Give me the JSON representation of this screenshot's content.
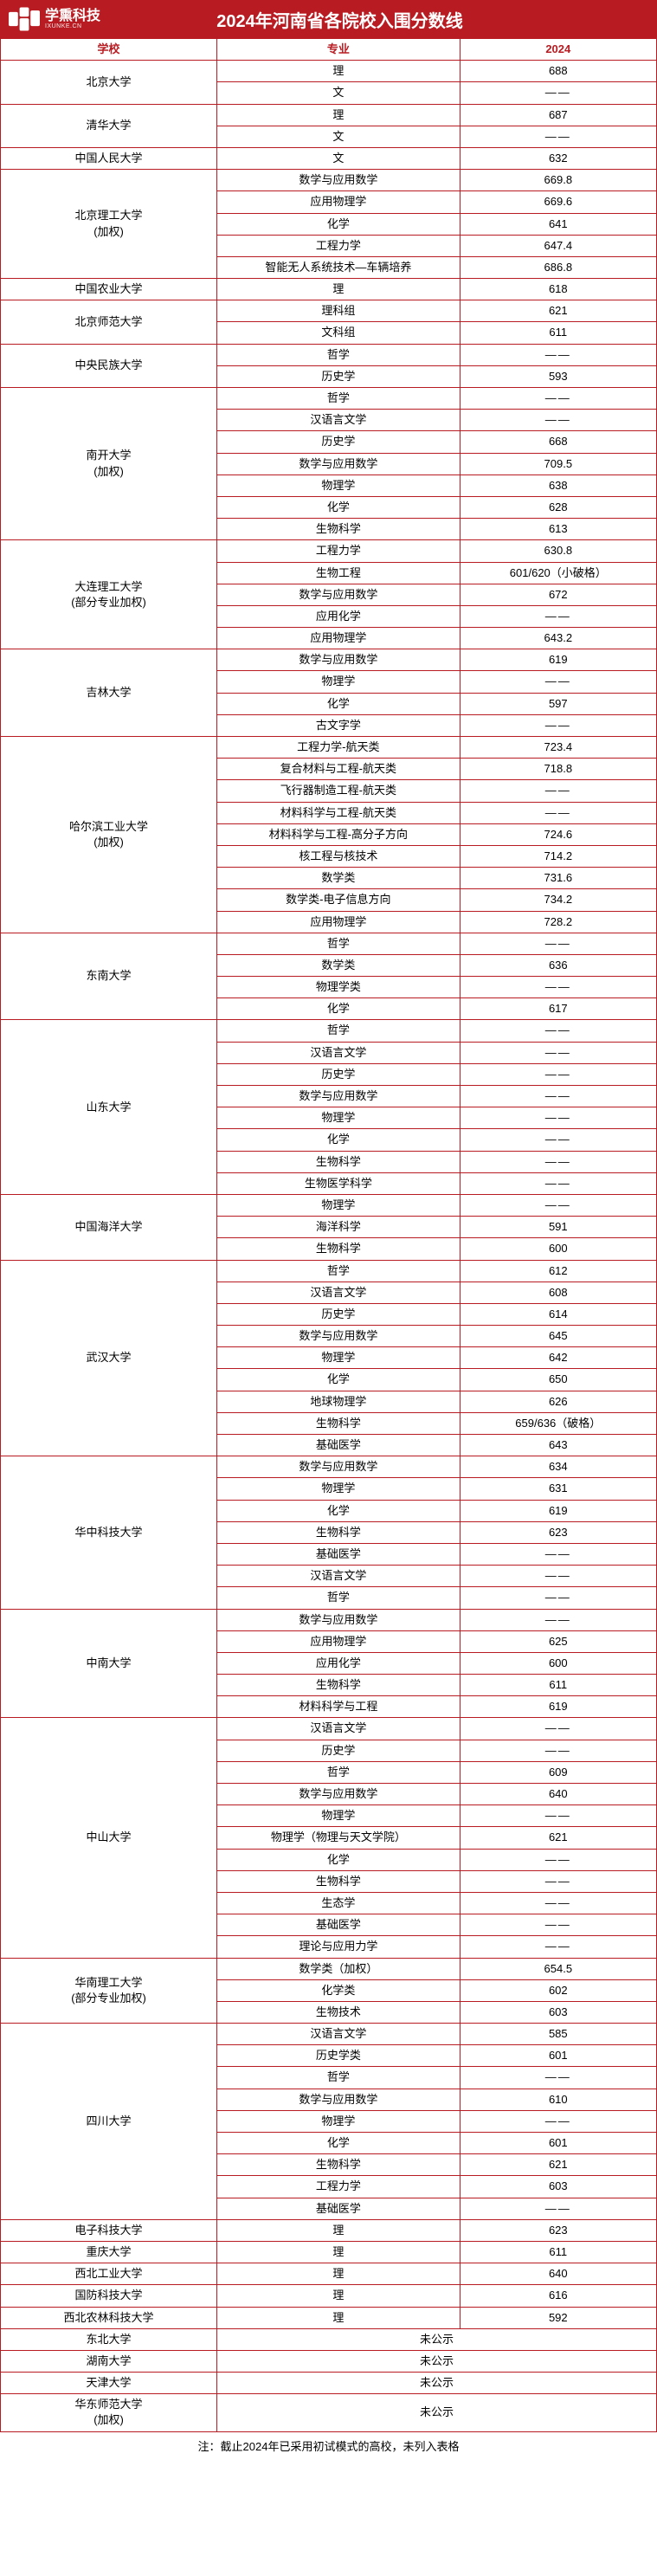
{
  "header": {
    "brand": "学熏科技",
    "brand_sub": "IXUNKE.CN",
    "title": "2024年河南省各院校入围分数线"
  },
  "columns": {
    "school": "学校",
    "major": "专业",
    "score": "2024"
  },
  "dash": "——",
  "footnote": "注：截止2024年已采用初试模式的高校，未列入表格",
  "rows": [
    {
      "s": "北京大学",
      "m": "理",
      "v": "688"
    },
    {
      "s": "",
      "m": "文",
      "v": "——"
    },
    {
      "s": "清华大学",
      "m": "理",
      "v": "687"
    },
    {
      "s": "",
      "m": "文",
      "v": "——"
    },
    {
      "s": "中国人民大学",
      "m": "文",
      "v": "632"
    },
    {
      "s": "北京理工大学\n(加权)",
      "m": "数学与应用数学",
      "v": "669.8"
    },
    {
      "s": "",
      "m": "应用物理学",
      "v": "669.6"
    },
    {
      "s": "",
      "m": "化学",
      "v": "641"
    },
    {
      "s": "",
      "m": "工程力学",
      "v": "647.4"
    },
    {
      "s": "",
      "m": "智能无人系统技术—车辆培养",
      "v": "686.8"
    },
    {
      "s": "中国农业大学",
      "m": "理",
      "v": "618"
    },
    {
      "s": "北京师范大学",
      "m": "理科组",
      "v": "621"
    },
    {
      "s": "",
      "m": "文科组",
      "v": "611"
    },
    {
      "s": "中央民族大学",
      "m": "哲学",
      "v": "——"
    },
    {
      "s": "",
      "m": "历史学",
      "v": "593"
    },
    {
      "s": "南开大学\n(加权)",
      "m": "哲学",
      "v": "——"
    },
    {
      "s": "",
      "m": "汉语言文学",
      "v": "——"
    },
    {
      "s": "",
      "m": "历史学",
      "v": "668"
    },
    {
      "s": "",
      "m": "数学与应用数学",
      "v": "709.5"
    },
    {
      "s": "",
      "m": "物理学",
      "v": "638"
    },
    {
      "s": "",
      "m": "化学",
      "v": "628"
    },
    {
      "s": "",
      "m": "生物科学",
      "v": "613"
    },
    {
      "s": "大连理工大学\n(部分专业加权)",
      "m": "工程力学",
      "v": "630.8"
    },
    {
      "s": "",
      "m": "生物工程",
      "v": "601/620（小破格）"
    },
    {
      "s": "",
      "m": "数学与应用数学",
      "v": "672"
    },
    {
      "s": "",
      "m": "应用化学",
      "v": "——"
    },
    {
      "s": "",
      "m": "应用物理学",
      "v": "643.2"
    },
    {
      "s": "吉林大学",
      "m": "数学与应用数学",
      "v": "619"
    },
    {
      "s": "",
      "m": "物理学",
      "v": "——"
    },
    {
      "s": "",
      "m": "化学",
      "v": "597"
    },
    {
      "s": "",
      "m": "古文字学",
      "v": "——"
    },
    {
      "s": "哈尔滨工业大学\n(加权)",
      "m": "工程力学-航天类",
      "v": "723.4"
    },
    {
      "s": "",
      "m": "复合材料与工程-航天类",
      "v": "718.8"
    },
    {
      "s": "",
      "m": "飞行器制造工程-航天类",
      "v": "——"
    },
    {
      "s": "",
      "m": "材料科学与工程-航天类",
      "v": "——"
    },
    {
      "s": "",
      "m": "材料科学与工程-高分子方向",
      "v": "724.6"
    },
    {
      "s": "",
      "m": "核工程与核技术",
      "v": "714.2"
    },
    {
      "s": "",
      "m": "数学类",
      "v": "731.6"
    },
    {
      "s": "",
      "m": "数学类-电子信息方向",
      "v": "734.2"
    },
    {
      "s": "",
      "m": "应用物理学",
      "v": "728.2"
    },
    {
      "s": "东南大学",
      "m": "哲学",
      "v": "——"
    },
    {
      "s": "",
      "m": "数学类",
      "v": "636"
    },
    {
      "s": "",
      "m": "物理学类",
      "v": "——"
    },
    {
      "s": "",
      "m": "化学",
      "v": "617"
    },
    {
      "s": "山东大学",
      "m": "哲学",
      "v": "——"
    },
    {
      "s": "",
      "m": "汉语言文学",
      "v": "——"
    },
    {
      "s": "",
      "m": "历史学",
      "v": "——"
    },
    {
      "s": "",
      "m": "数学与应用数学",
      "v": "——"
    },
    {
      "s": "",
      "m": "物理学",
      "v": "——"
    },
    {
      "s": "",
      "m": "化学",
      "v": "——"
    },
    {
      "s": "",
      "m": "生物科学",
      "v": "——"
    },
    {
      "s": "",
      "m": "生物医学科学",
      "v": "——"
    },
    {
      "s": "中国海洋大学",
      "m": "物理学",
      "v": "——"
    },
    {
      "s": "",
      "m": "海洋科学",
      "v": "591"
    },
    {
      "s": "",
      "m": "生物科学",
      "v": "600"
    },
    {
      "s": "武汉大学",
      "m": "哲学",
      "v": "612"
    },
    {
      "s": "",
      "m": "汉语言文学",
      "v": "608"
    },
    {
      "s": "",
      "m": "历史学",
      "v": "614"
    },
    {
      "s": "",
      "m": "数学与应用数学",
      "v": "645"
    },
    {
      "s": "",
      "m": "物理学",
      "v": "642"
    },
    {
      "s": "",
      "m": "化学",
      "v": "650"
    },
    {
      "s": "",
      "m": "地球物理学",
      "v": "626"
    },
    {
      "s": "",
      "m": "生物科学",
      "v": "659/636（破格）"
    },
    {
      "s": "",
      "m": "基础医学",
      "v": "643"
    },
    {
      "s": "华中科技大学",
      "m": "数学与应用数学",
      "v": "634"
    },
    {
      "s": "",
      "m": "物理学",
      "v": "631"
    },
    {
      "s": "",
      "m": "化学",
      "v": "619"
    },
    {
      "s": "",
      "m": "生物科学",
      "v": "623"
    },
    {
      "s": "",
      "m": "基础医学",
      "v": "——"
    },
    {
      "s": "",
      "m": "汉语言文学",
      "v": "——"
    },
    {
      "s": "",
      "m": "哲学",
      "v": "——"
    },
    {
      "s": "中南大学",
      "m": "数学与应用数学",
      "v": "——"
    },
    {
      "s": "",
      "m": "应用物理学",
      "v": "625"
    },
    {
      "s": "",
      "m": "应用化学",
      "v": "600"
    },
    {
      "s": "",
      "m": "生物科学",
      "v": "611"
    },
    {
      "s": "",
      "m": "材料科学与工程",
      "v": "619"
    },
    {
      "s": "中山大学",
      "m": "汉语言文学",
      "v": "——"
    },
    {
      "s": "",
      "m": "历史学",
      "v": "——"
    },
    {
      "s": "",
      "m": "哲学",
      "v": "609"
    },
    {
      "s": "",
      "m": "数学与应用数学",
      "v": "640"
    },
    {
      "s": "",
      "m": "物理学",
      "v": "——"
    },
    {
      "s": "",
      "m": "物理学（物理与天文学院）",
      "v": "621"
    },
    {
      "s": "",
      "m": "化学",
      "v": "——"
    },
    {
      "s": "",
      "m": "生物科学",
      "v": "——"
    },
    {
      "s": "",
      "m": "生态学",
      "v": "——"
    },
    {
      "s": "",
      "m": "基础医学",
      "v": "——"
    },
    {
      "s": "",
      "m": "理论与应用力学",
      "v": "——"
    },
    {
      "s": "华南理工大学\n(部分专业加权)",
      "m": "数学类（加权）",
      "v": "654.5"
    },
    {
      "s": "",
      "m": "化学类",
      "v": "602"
    },
    {
      "s": "",
      "m": "生物技术",
      "v": "603"
    },
    {
      "s": "四川大学",
      "m": "汉语言文学",
      "v": "585"
    },
    {
      "s": "",
      "m": "历史学类",
      "v": "601"
    },
    {
      "s": "",
      "m": "哲学",
      "v": "——"
    },
    {
      "s": "",
      "m": "数学与应用数学",
      "v": "610"
    },
    {
      "s": "",
      "m": "物理学",
      "v": "——"
    },
    {
      "s": "",
      "m": "化学",
      "v": "601"
    },
    {
      "s": "",
      "m": "生物科学",
      "v": "621"
    },
    {
      "s": "",
      "m": "工程力学",
      "v": "603"
    },
    {
      "s": "",
      "m": "基础医学",
      "v": "——"
    },
    {
      "s": "电子科技大学",
      "m": "理",
      "v": "623"
    },
    {
      "s": "重庆大学",
      "m": "理",
      "v": "611"
    },
    {
      "s": "西北工业大学",
      "m": "理",
      "v": "640"
    },
    {
      "s": "国防科技大学",
      "m": "理",
      "v": "616"
    },
    {
      "s": "西北农林科技大学",
      "m": "理",
      "v": "592"
    },
    {
      "s": "东北大学",
      "m": "未公示",
      "v": "",
      "span": 2
    },
    {
      "s": "湖南大学",
      "m": "未公示",
      "v": "",
      "span": 2
    },
    {
      "s": "天津大学",
      "m": "未公示",
      "v": "",
      "span": 2
    },
    {
      "s": "华东师范大学\n(加权)",
      "m": "未公示",
      "v": "",
      "span": 2
    }
  ]
}
